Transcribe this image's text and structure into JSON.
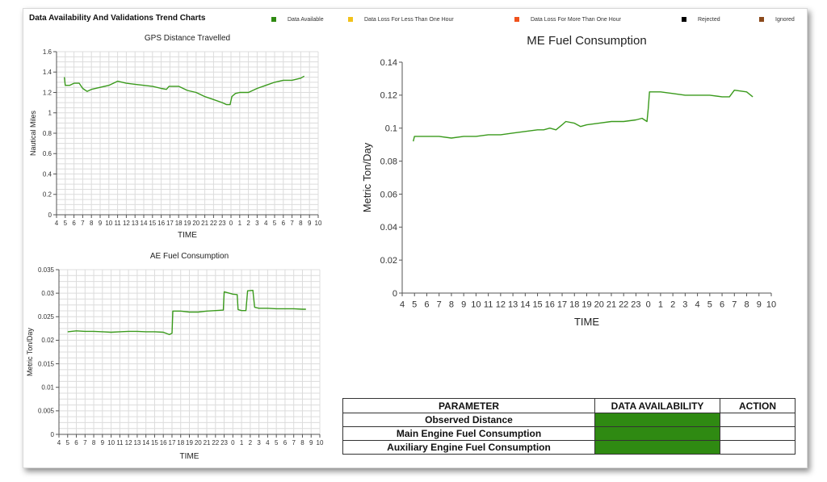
{
  "header": {
    "title": "Data Availability And Validations Trend Charts"
  },
  "legend": [
    {
      "label": "Data Available",
      "color": "#2f8a12"
    },
    {
      "label": "Data Loss For Less Than One Hour",
      "color": "#f2c21a"
    },
    {
      "label": "Data Loss For More Than One Hour",
      "color": "#f0521d"
    },
    {
      "label": "Rejected",
      "color": "#000000"
    },
    {
      "label": "Ignored",
      "color": "#8b4a1c"
    }
  ],
  "chart_data": [
    {
      "id": "gps",
      "type": "line",
      "title": "GPS Distance Travelled",
      "xlabel": "TIME",
      "ylabel": "Nautical Miles",
      "x_ticks": [
        "4",
        "5",
        "6",
        "7",
        "8",
        "9",
        "10",
        "11",
        "12",
        "13",
        "14",
        "15",
        "16",
        "17",
        "18",
        "19",
        "20",
        "21",
        "22",
        "23",
        "0",
        "1",
        "2",
        "3",
        "4",
        "5",
        "6",
        "7",
        "8",
        "9",
        "10"
      ],
      "y_ticks": [
        "0",
        "0.2",
        "0.4",
        "0.6",
        "0.8",
        "1",
        "1.2",
        "1.4",
        "1.6"
      ],
      "ylim": [
        0,
        1.6
      ],
      "grid": true,
      "color": "#3a9a1c",
      "series": [
        {
          "values": [
            [
              0.9,
              1.35
            ],
            [
              1.0,
              1.27
            ],
            [
              1.5,
              1.27
            ],
            [
              2.0,
              1.29
            ],
            [
              2.6,
              1.29
            ],
            [
              3.0,
              1.24
            ],
            [
              3.5,
              1.21
            ],
            [
              4.0,
              1.23
            ],
            [
              5.0,
              1.25
            ],
            [
              6.0,
              1.27
            ],
            [
              7.0,
              1.31
            ],
            [
              8.0,
              1.29
            ],
            [
              9.0,
              1.28
            ],
            [
              10.0,
              1.27
            ],
            [
              11.0,
              1.26
            ],
            [
              12.0,
              1.24
            ],
            [
              12.6,
              1.23
            ],
            [
              12.9,
              1.26
            ],
            [
              14.0,
              1.26
            ],
            [
              15.0,
              1.22
            ],
            [
              16.0,
              1.2
            ],
            [
              17.0,
              1.16
            ],
            [
              18.0,
              1.13
            ],
            [
              19.0,
              1.1
            ],
            [
              19.5,
              1.08
            ],
            [
              19.9,
              1.08
            ],
            [
              20.1,
              1.16
            ],
            [
              20.5,
              1.19
            ],
            [
              21.0,
              1.2
            ],
            [
              22.0,
              1.2
            ],
            [
              23.0,
              1.24
            ],
            [
              24.0,
              1.27
            ],
            [
              25.0,
              1.3
            ],
            [
              26.0,
              1.32
            ],
            [
              27.0,
              1.32
            ],
            [
              28.0,
              1.34
            ],
            [
              28.4,
              1.36
            ]
          ]
        }
      ]
    },
    {
      "id": "ae",
      "type": "line",
      "title": "AE Fuel Consumption",
      "xlabel": "TIME",
      "ylabel": "Metric Ton/Day",
      "x_ticks": [
        "4",
        "5",
        "6",
        "7",
        "8",
        "9",
        "10",
        "11",
        "12",
        "13",
        "14",
        "15",
        "16",
        "17",
        "18",
        "19",
        "20",
        "21",
        "22",
        "23",
        "0",
        "1",
        "2",
        "3",
        "4",
        "5",
        "6",
        "7",
        "8",
        "9",
        "10"
      ],
      "y_ticks": [
        "0",
        "0.005",
        "0.01",
        "0.015",
        "0.02",
        "0.025",
        "0.03",
        "0.035"
      ],
      "ylim": [
        0,
        0.035
      ],
      "grid": true,
      "color": "#3a9a1c",
      "series": [
        {
          "values": [
            [
              1.0,
              0.0218
            ],
            [
              2.0,
              0.022
            ],
            [
              3.0,
              0.0219
            ],
            [
              4.0,
              0.0219
            ],
            [
              5.0,
              0.0218
            ],
            [
              6.0,
              0.0217
            ],
            [
              7.0,
              0.0218
            ],
            [
              8.0,
              0.0219
            ],
            [
              9.0,
              0.0219
            ],
            [
              10.0,
              0.0218
            ],
            [
              11.0,
              0.0218
            ],
            [
              12.0,
              0.0217
            ],
            [
              12.7,
              0.0212
            ],
            [
              13.0,
              0.0215
            ],
            [
              13.1,
              0.0262
            ],
            [
              14.0,
              0.0262
            ],
            [
              15.0,
              0.026
            ],
            [
              16.0,
              0.026
            ],
            [
              17.0,
              0.0262
            ],
            [
              18.0,
              0.0263
            ],
            [
              18.9,
              0.0264
            ],
            [
              19.0,
              0.0303
            ],
            [
              20.0,
              0.0298
            ],
            [
              20.5,
              0.0297
            ],
            [
              20.6,
              0.0265
            ],
            [
              21.0,
              0.0263
            ],
            [
              21.5,
              0.0263
            ],
            [
              21.7,
              0.0305
            ],
            [
              22.3,
              0.0306
            ],
            [
              22.5,
              0.027
            ],
            [
              23.0,
              0.0268
            ],
            [
              24.0,
              0.0268
            ],
            [
              25.0,
              0.0267
            ],
            [
              26.0,
              0.0267
            ],
            [
              27.0,
              0.0267
            ],
            [
              28.0,
              0.0266
            ],
            [
              28.4,
              0.0266
            ]
          ]
        }
      ]
    },
    {
      "id": "me",
      "type": "line",
      "title": "ME Fuel Consumption",
      "xlabel": "TIME",
      "ylabel": "Metric Ton/Day",
      "x_ticks": [
        "4",
        "5",
        "6",
        "7",
        "8",
        "9",
        "10",
        "11",
        "12",
        "13",
        "14",
        "15",
        "16",
        "17",
        "18",
        "19",
        "20",
        "21",
        "22",
        "23",
        "0",
        "1",
        "2",
        "3",
        "4",
        "5",
        "6",
        "7",
        "8",
        "9",
        "10"
      ],
      "y_ticks": [
        "0",
        "0.02",
        "0.04",
        "0.06",
        "0.08",
        "0.1",
        "0.12",
        "0.14"
      ],
      "ylim": [
        0,
        0.14
      ],
      "grid": false,
      "color": "#3a9a1c",
      "series": [
        {
          "values": [
            [
              0.9,
              0.092
            ],
            [
              1.0,
              0.095
            ],
            [
              2.0,
              0.095
            ],
            [
              3.0,
              0.095
            ],
            [
              4.0,
              0.094
            ],
            [
              5.0,
              0.095
            ],
            [
              6.0,
              0.095
            ],
            [
              7.0,
              0.096
            ],
            [
              8.0,
              0.096
            ],
            [
              9.0,
              0.097
            ],
            [
              10.0,
              0.098
            ],
            [
              11.0,
              0.099
            ],
            [
              11.5,
              0.099
            ],
            [
              12.0,
              0.1
            ],
            [
              12.5,
              0.099
            ],
            [
              13.0,
              0.102
            ],
            [
              13.3,
              0.104
            ],
            [
              14.0,
              0.103
            ],
            [
              14.5,
              0.101
            ],
            [
              15.0,
              0.102
            ],
            [
              16.0,
              0.103
            ],
            [
              17.0,
              0.104
            ],
            [
              18.0,
              0.104
            ],
            [
              19.0,
              0.105
            ],
            [
              19.5,
              0.106
            ],
            [
              19.9,
              0.104
            ],
            [
              20.0,
              0.112
            ],
            [
              20.1,
              0.122
            ],
            [
              21.0,
              0.122
            ],
            [
              22.0,
              0.121
            ],
            [
              23.0,
              0.12
            ],
            [
              24.0,
              0.12
            ],
            [
              25.0,
              0.12
            ],
            [
              26.0,
              0.119
            ],
            [
              26.6,
              0.119
            ],
            [
              27.0,
              0.123
            ],
            [
              28.0,
              0.122
            ],
            [
              28.5,
              0.119
            ]
          ]
        }
      ]
    }
  ],
  "table": {
    "headers": [
      "PARAMETER",
      "DATA AVAILABILITY",
      "ACTION"
    ],
    "rows": [
      {
        "parameter": "Observed Distance",
        "availability_color": "#2f8a12",
        "action": ""
      },
      {
        "parameter": "Main Engine Fuel Consumption",
        "availability_color": "#2f8a12",
        "action": ""
      },
      {
        "parameter": "Auxiliary Engine Fuel Consumption",
        "availability_color": "#2f8a12",
        "action": ""
      }
    ]
  }
}
